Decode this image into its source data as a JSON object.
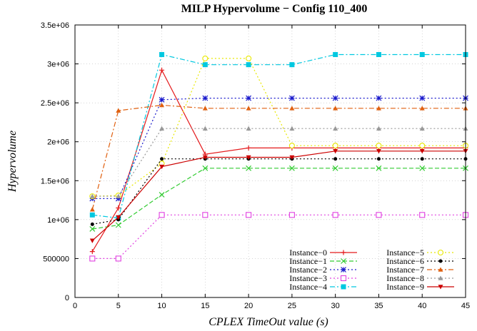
{
  "chart_data": {
    "type": "line",
    "title": "MILP Hypervolume − Config 110_400",
    "xlabel": "CPLEX TimeOut value (s)",
    "ylabel": "Hypervolume",
    "xlim": [
      0,
      45
    ],
    "ylim": [
      0,
      3500000
    ],
    "x_ticks": [
      "0",
      "5",
      "10",
      "15",
      "20",
      "25",
      "30",
      "35",
      "40",
      "45"
    ],
    "y_ticks": [
      "0",
      "500000",
      "1e+06",
      "1.5e+06",
      "2e+06",
      "2.5e+06",
      "3e+06",
      "3.5e+06"
    ],
    "grid": true,
    "legend_position": "bottom-right",
    "x": [
      2,
      5,
      10,
      15,
      20,
      25,
      30,
      35,
      40,
      45
    ],
    "series": [
      {
        "name": "Instance−0",
        "color": "#e41a1c",
        "dash": "solid",
        "marker": "plus",
        "values": [
          590000,
          1150000,
          2920000,
          1840000,
          1920000,
          1920000,
          1920000,
          1920000,
          1920000,
          1920000
        ]
      },
      {
        "name": "Instance−1",
        "color": "#33cc33",
        "dash": "dashed",
        "marker": "x",
        "values": [
          880000,
          930000,
          1320000,
          1660000,
          1660000,
          1660000,
          1660000,
          1660000,
          1660000,
          1660000
        ]
      },
      {
        "name": "Instance−2",
        "color": "#1a1acc",
        "dash": "dotted",
        "marker": "star",
        "values": [
          1270000,
          1270000,
          2540000,
          2560000,
          2560000,
          2560000,
          2560000,
          2560000,
          2560000,
          2560000
        ]
      },
      {
        "name": "Instance−3",
        "color": "#e040e0",
        "dash": "dotted",
        "marker": "square",
        "values": [
          500000,
          500000,
          1060000,
          1060000,
          1060000,
          1060000,
          1060000,
          1060000,
          1060000,
          1060000
        ]
      },
      {
        "name": "Instance−4",
        "color": "#00c8e0",
        "dash": "dashdot",
        "marker": "filled-square",
        "values": [
          1060000,
          1020000,
          3120000,
          2990000,
          2990000,
          2990000,
          3120000,
          3120000,
          3120000,
          3120000
        ]
      },
      {
        "name": "Instance−5",
        "color": "#e8e800",
        "dash": "dotted",
        "marker": "circle",
        "values": [
          1300000,
          1310000,
          1720000,
          3070000,
          3070000,
          1950000,
          1950000,
          1950000,
          1950000,
          1950000
        ]
      },
      {
        "name": "Instance−6",
        "color": "#000000",
        "dash": "dotted",
        "marker": "filled-circle",
        "values": [
          940000,
          1000000,
          1780000,
          1780000,
          1780000,
          1780000,
          1780000,
          1780000,
          1780000,
          1780000
        ]
      },
      {
        "name": "Instance−7",
        "color": "#e06010",
        "dash": "dashdot",
        "marker": "filled-triangle",
        "values": [
          1130000,
          2400000,
          2470000,
          2430000,
          2430000,
          2430000,
          2430000,
          2430000,
          2430000,
          2430000
        ]
      },
      {
        "name": "Instance−8",
        "color": "#999999",
        "dash": "dotted",
        "marker": "filled-triangle",
        "values": [
          1300000,
          1300000,
          2170000,
          2170000,
          2170000,
          2170000,
          2170000,
          2170000,
          2170000,
          2170000
        ]
      },
      {
        "name": "Instance−9",
        "color": "#cc0000",
        "dash": "solid",
        "marker": "filled-inverted-triangle",
        "values": [
          730000,
          1030000,
          1680000,
          1800000,
          1800000,
          1800000,
          1880000,
          1880000,
          1880000,
          1880000
        ]
      }
    ]
  }
}
